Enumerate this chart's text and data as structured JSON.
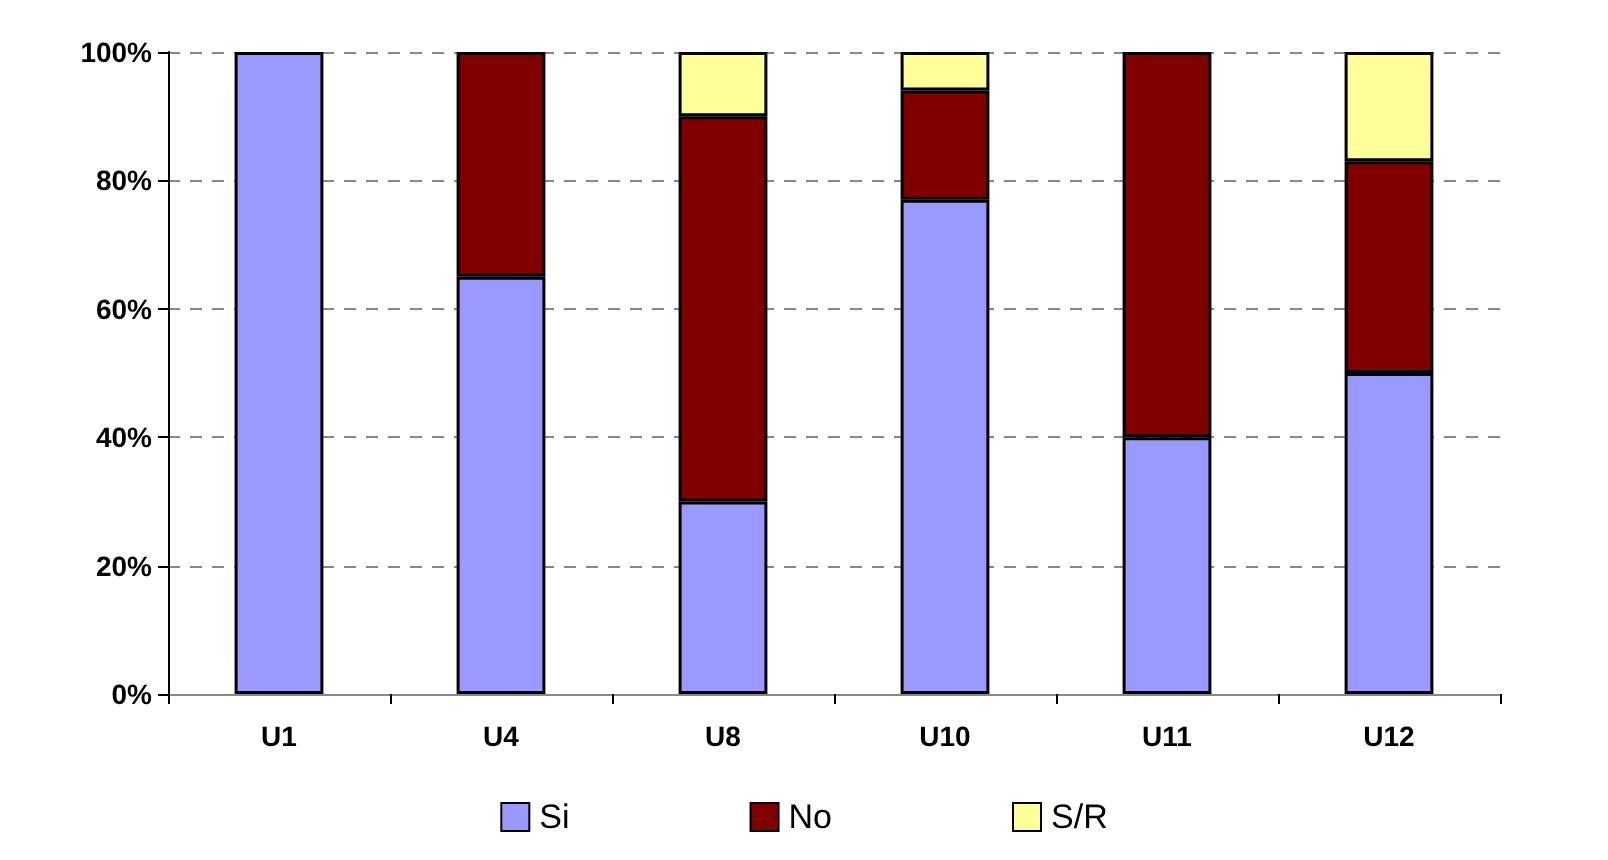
{
  "chart_data": {
    "type": "bar",
    "stacked": true,
    "categories": [
      "U1",
      "U4",
      "U8",
      "U10",
      "U11",
      "U12"
    ],
    "series": [
      {
        "name": "Si",
        "color": "#9999ff",
        "values": [
          100,
          65,
          30,
          77,
          40,
          50
        ]
      },
      {
        "name": "No",
        "color": "#800000",
        "values": [
          0,
          35,
          60,
          17,
          60,
          33
        ]
      },
      {
        "name": "S/R",
        "color": "#ffff99",
        "values": [
          0,
          0,
          10,
          6,
          0,
          17
        ]
      }
    ],
    "ylim": [
      0,
      100
    ],
    "yticks": [
      {
        "value": 0,
        "label": "0%"
      },
      {
        "value": 20,
        "label": "20%"
      },
      {
        "value": 40,
        "label": "40%"
      },
      {
        "value": 60,
        "label": "60%"
      },
      {
        "value": 80,
        "label": "80%"
      },
      {
        "value": 100,
        "label": "100%"
      }
    ],
    "grid": "y",
    "legend": "bottom"
  }
}
